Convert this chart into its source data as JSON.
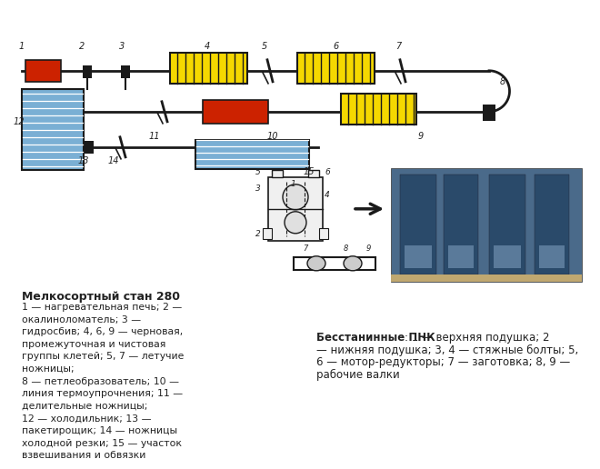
{
  "bg_color": "#ffffff",
  "line_color": "#1a1a1a",
  "red_color": "#cc2200",
  "yellow_color": "#f5d800",
  "blue_color": "#7aafd4",
  "text_color": "#222222",
  "title": "Мелкосортный стан 280",
  "desc_text": "1 — нагревательная печь; 2 —\nокалиноломатель; 3 —\nгидросбив; 4, 6, 9 — черновая,\nпромежуточная и чистовая\nгруппы клетей; 5, 7 — летучие\nножницы;\n8 — петлеобразователь; 10 —\nлиния термоупрочнения; 11 —\nделительные ножницы;\n12 — холодильник; 13 —\nпакетирощик; 14 — ножницы\nхолодной резки; 15 — участок\nвзвешивания и обвязки",
  "right_bold": "Бесстанинные ПНК",
  "right_text": ": 1 — верхняя подушка; 2\n— нижняя подушка; 3, 4 — стяжные болты; 5,\n6 — мотор-редукторы; 7 — заготовка; 8, 9 —\nрабочие валки"
}
